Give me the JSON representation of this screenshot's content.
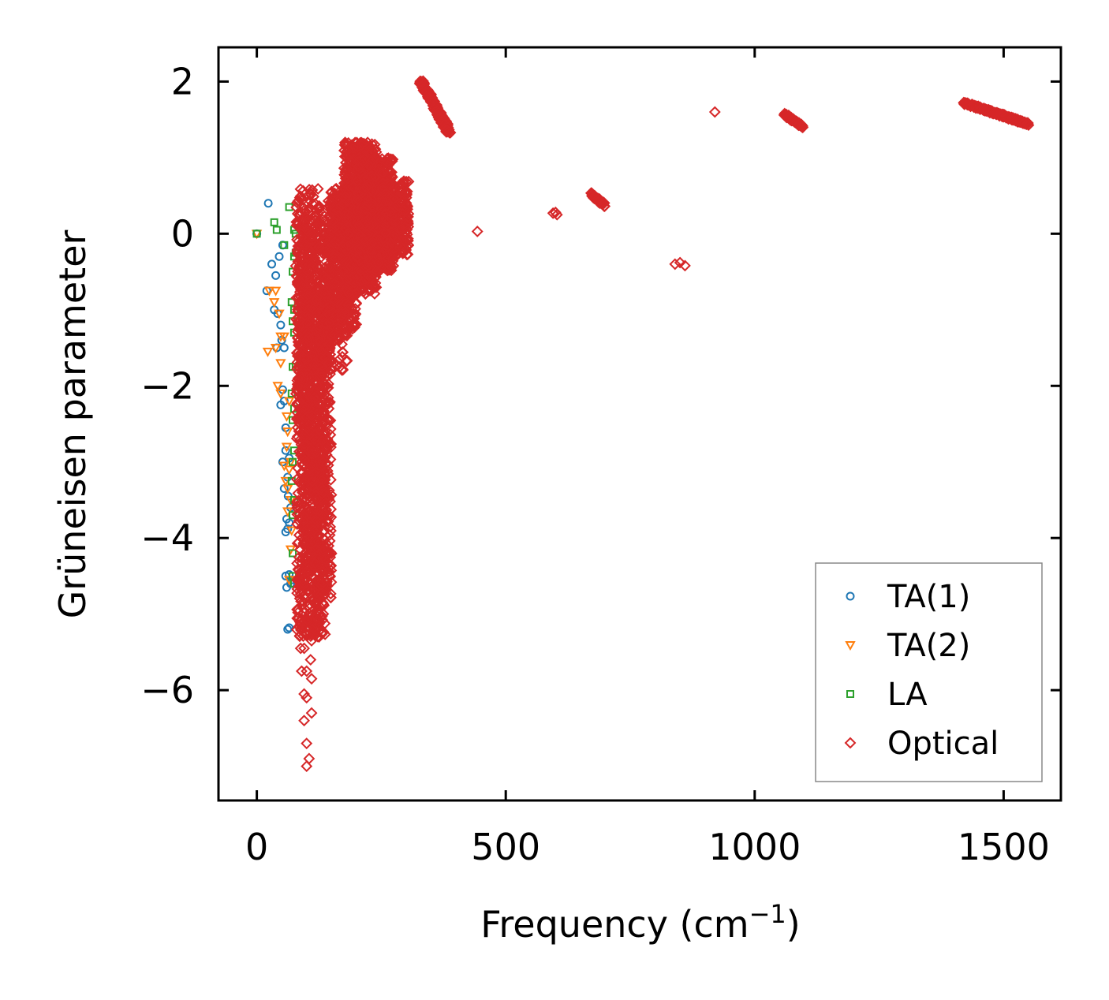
{
  "chart_data": {
    "type": "scatter",
    "title": "",
    "xlabel": "Frequency (cm",
    "xlabel_sup": "−1",
    "xlabel_end": ")",
    "ylabel": "Grüneisen parameter",
    "xlim": [
      -77,
      1615
    ],
    "ylim": [
      -7.45,
      2.45
    ],
    "xticks": [
      0,
      500,
      1000,
      1500
    ],
    "xtick_labels": [
      "0",
      "500",
      "1000",
      "1500"
    ],
    "yticks": [
      2,
      0,
      -2,
      -4,
      -6
    ],
    "ytick_labels": [
      "2",
      "0",
      "−2",
      "−4",
      "−6"
    ],
    "grid": false,
    "legend_position": "bottom-right",
    "series": [
      {
        "name": "TA(1)",
        "marker": "circle",
        "color": "#1f77b4",
        "points": [
          [
            0,
            0
          ],
          [
            23,
            0.4
          ],
          [
            30,
            -0.4
          ],
          [
            38,
            -0.55
          ],
          [
            45,
            -0.3
          ],
          [
            52,
            -0.15
          ],
          [
            20,
            -0.75
          ],
          [
            35,
            -1.0
          ],
          [
            42,
            -1.05
          ],
          [
            48,
            -1.2
          ],
          [
            50,
            -1.4
          ],
          [
            40,
            -1.5
          ],
          [
            55,
            -1.5
          ],
          [
            52,
            -2.05
          ],
          [
            48,
            -2.25
          ],
          [
            55,
            -2.2
          ],
          [
            58,
            -2.55
          ],
          [
            52,
            -3.0
          ],
          [
            58,
            -2.85
          ],
          [
            65,
            -2.95
          ],
          [
            62,
            -3.2
          ],
          [
            55,
            -3.35
          ],
          [
            63,
            -3.45
          ],
          [
            68,
            -3.6
          ],
          [
            60,
            -3.75
          ],
          [
            65,
            -3.8
          ],
          [
            58,
            -3.92
          ],
          [
            62,
            -3.88
          ],
          [
            58,
            -4.5
          ],
          [
            65,
            -4.48
          ],
          [
            70,
            -4.55
          ],
          [
            68,
            -4.6
          ],
          [
            60,
            -4.65
          ],
          [
            62,
            -5.2
          ],
          [
            65,
            -5.18
          ]
        ]
      },
      {
        "name": "TA(2)",
        "marker": "triangle-down",
        "color": "#ff7f0e",
        "points": [
          [
            0,
            0
          ],
          [
            25,
            -0.75
          ],
          [
            38,
            -0.75
          ],
          [
            35,
            -0.9
          ],
          [
            45,
            -1.05
          ],
          [
            48,
            -1.35
          ],
          [
            55,
            -1.35
          ],
          [
            22,
            -1.55
          ],
          [
            38,
            -1.5
          ],
          [
            48,
            -1.7
          ],
          [
            42,
            -2.0
          ],
          [
            48,
            -2.1
          ],
          [
            60,
            -2.4
          ],
          [
            65,
            -2.2
          ],
          [
            62,
            -2.6
          ],
          [
            60,
            -2.8
          ],
          [
            55,
            -3.05
          ],
          [
            58,
            -3.25
          ],
          [
            62,
            -3.35
          ],
          [
            65,
            -3.1
          ],
          [
            68,
            -3.5
          ],
          [
            62,
            -3.65
          ],
          [
            70,
            -3.9
          ],
          [
            68,
            -4.15
          ],
          [
            65,
            -4.55
          ],
          [
            68,
            -3.0
          ]
        ]
      },
      {
        "name": "LA",
        "marker": "square",
        "color": "#2ca02c",
        "points": [
          [
            0,
            0
          ],
          [
            35,
            0.15
          ],
          [
            40,
            0.05
          ],
          [
            65,
            0.35
          ],
          [
            75,
            0.05
          ],
          [
            78,
            0.0
          ],
          [
            55,
            -0.15
          ],
          [
            75,
            -0.3
          ],
          [
            72,
            -0.5
          ],
          [
            78,
            -0.25
          ],
          [
            70,
            -0.9
          ],
          [
            75,
            -1.0
          ],
          [
            72,
            -1.15
          ],
          [
            75,
            -1.3
          ],
          [
            72,
            -1.75
          ],
          [
            78,
            -1.75
          ],
          [
            70,
            -2.1
          ],
          [
            75,
            -2.3
          ],
          [
            72,
            -2.45
          ],
          [
            75,
            -2.85
          ],
          [
            72,
            -3.0
          ],
          [
            70,
            -3.25
          ],
          [
            75,
            -3.5
          ],
          [
            72,
            -3.7
          ],
          [
            72,
            -4.2
          ],
          [
            75,
            -4.6
          ],
          [
            72,
            -4.5
          ]
        ]
      },
      {
        "name": "Optical",
        "marker": "diamond",
        "color": "#d62728",
        "points": [
          [
            100,
            -7.0
          ],
          [
            100,
            -6.7
          ],
          [
            105,
            -6.9
          ],
          [
            95,
            -6.4
          ],
          [
            110,
            -6.3
          ],
          [
            95,
            -6.05
          ],
          [
            100,
            -6.1
          ],
          [
            110,
            -5.85
          ],
          [
            90,
            -5.75
          ],
          [
            100,
            -5.75
          ],
          [
            108,
            -5.6
          ],
          [
            95,
            -5.45
          ],
          [
            110,
            -5.35
          ],
          [
            125,
            -5.3
          ],
          [
            88,
            -5.45
          ],
          [
            330,
            2.0
          ],
          [
            840,
            -0.4
          ],
          [
            850,
            -0.38
          ],
          [
            860,
            -0.42
          ],
          [
            920,
            1.6
          ],
          [
            443,
            0.03
          ],
          [
            600,
            0.28
          ],
          [
            603,
            0.25
          ],
          [
            595,
            0.27
          ]
        ],
        "bands": [
          {
            "xlo": 80,
            "xhi": 138,
            "ylo": -5.3,
            "yhi": 0.2,
            "n": 900
          },
          {
            "xlo": 92,
            "xhi": 150,
            "ylo": -4.8,
            "yhi": -0.8,
            "n": 500
          },
          {
            "xlo": 78,
            "xhi": 130,
            "ylo": -2.4,
            "yhi": 0.6,
            "n": 250
          },
          {
            "xlo": 145,
            "xhi": 200,
            "ylo": -1.3,
            "yhi": 0.6,
            "n": 400
          },
          {
            "xlo": 175,
            "xhi": 240,
            "ylo": -0.8,
            "yhi": 1.2,
            "n": 700
          },
          {
            "xlo": 200,
            "xhi": 275,
            "ylo": -0.5,
            "yhi": 1.0,
            "n": 700
          },
          {
            "xlo": 250,
            "xhi": 305,
            "ylo": -0.3,
            "yhi": 0.7,
            "n": 300
          },
          {
            "xlo": 135,
            "xhi": 185,
            "ylo": -1.8,
            "yhi": 0.5,
            "n": 200
          }
        ],
        "segments": [
          {
            "x0": 330,
            "y0": 2.0,
            "x1": 385,
            "y1": 1.35,
            "n": 200,
            "jitter_x": 8,
            "jitter_y": 0.06
          },
          {
            "x0": 672,
            "y0": 0.52,
            "x1": 698,
            "y1": 0.38,
            "n": 40,
            "jitter_x": 3,
            "jitter_y": 0.05
          },
          {
            "x0": 1060,
            "y0": 1.57,
            "x1": 1098,
            "y1": 1.4,
            "n": 60,
            "jitter_x": 3,
            "jitter_y": 0.04
          },
          {
            "x0": 1420,
            "y0": 1.72,
            "x1": 1550,
            "y1": 1.44,
            "n": 220,
            "jitter_x": 4,
            "jitter_y": 0.03
          }
        ]
      }
    ]
  }
}
